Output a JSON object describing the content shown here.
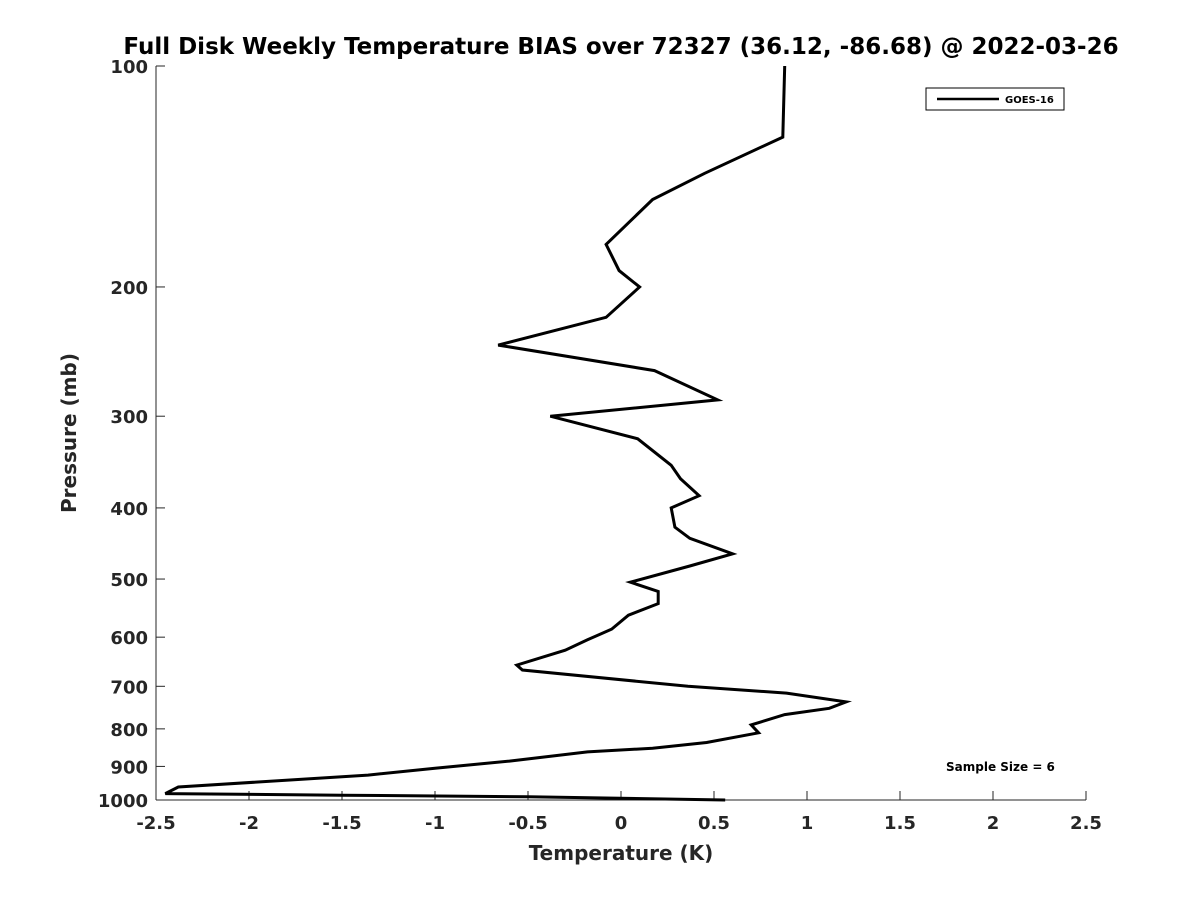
{
  "chart_data": {
    "type": "line",
    "title": "Full Disk Weekly Temperature BIAS over 72327 (36.12, -86.68) @ 2022-03-26",
    "xlabel": "Temperature (K)",
    "ylabel": "Pressure (mb)",
    "xlim": [
      -2.5,
      2.5
    ],
    "ylim": [
      1000,
      100
    ],
    "yscale": "log",
    "y_reversed": true,
    "xticks": [
      -2.5,
      -2,
      -1.5,
      -1,
      -0.5,
      0,
      0.5,
      1,
      1.5,
      2,
      2.5
    ],
    "xtick_labels": [
      "-2.5",
      "-2",
      "-1.5",
      "-1",
      "-0.5",
      "0",
      "0.5",
      "1",
      "1.5",
      "2",
      "2.5"
    ],
    "yticks": [
      100,
      200,
      300,
      400,
      500,
      600,
      700,
      800,
      900,
      1000
    ],
    "ytick_labels": [
      "100",
      "200",
      "300",
      "400",
      "500",
      "600",
      "700",
      "800",
      "900",
      "1000"
    ],
    "grid": false,
    "legend": {
      "position": "top-right"
    },
    "annotation": "Sample Size = 6",
    "series": [
      {
        "name": "GOES-16",
        "color": "#000000",
        "points": [
          [
            0.88,
            100
          ],
          [
            0.87,
            125
          ],
          [
            0.45,
            140
          ],
          [
            0.17,
            152
          ],
          [
            -0.08,
            175
          ],
          [
            -0.01,
            190
          ],
          [
            0.1,
            200
          ],
          [
            -0.08,
            220
          ],
          [
            -0.66,
            240
          ],
          [
            0.18,
            260
          ],
          [
            0.52,
            285
          ],
          [
            -0.38,
            300
          ],
          [
            0.09,
            322
          ],
          [
            0.27,
            350
          ],
          [
            0.32,
            365
          ],
          [
            0.42,
            385
          ],
          [
            0.27,
            400
          ],
          [
            0.29,
            425
          ],
          [
            0.37,
            440
          ],
          [
            0.6,
            462
          ],
          [
            0.37,
            480
          ],
          [
            0.05,
            505
          ],
          [
            0.2,
            520
          ],
          [
            0.2,
            540
          ],
          [
            0.04,
            560
          ],
          [
            -0.05,
            585
          ],
          [
            -0.18,
            605
          ],
          [
            -0.3,
            625
          ],
          [
            -0.56,
            655
          ],
          [
            -0.53,
            665
          ],
          [
            0.36,
            700
          ],
          [
            0.89,
            715
          ],
          [
            1.21,
            735
          ],
          [
            1.12,
            750
          ],
          [
            0.88,
            765
          ],
          [
            0.7,
            790
          ],
          [
            0.74,
            810
          ],
          [
            0.46,
            835
          ],
          [
            0.17,
            850
          ],
          [
            -0.18,
            860
          ],
          [
            -0.6,
            885
          ],
          [
            -1.0,
            905
          ],
          [
            -1.36,
            925
          ],
          [
            -2.38,
            960
          ],
          [
            -2.45,
            980
          ],
          [
            -1.5,
            985
          ],
          [
            -0.5,
            990
          ],
          [
            0.56,
            1000
          ]
        ]
      }
    ]
  }
}
